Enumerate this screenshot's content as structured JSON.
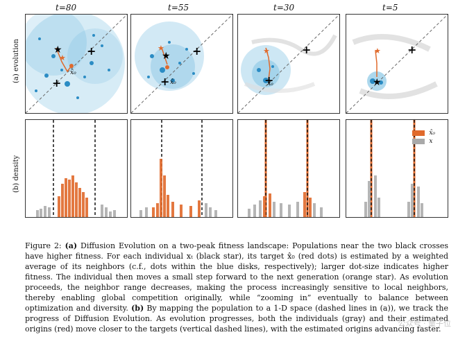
{
  "figure": {
    "col_titles": [
      "t=80",
      "t=55",
      "t=30",
      "t=5"
    ],
    "row_labels": {
      "evolution": "(a) evolution",
      "density": "(b) density"
    },
    "x0_label": "x̂₀",
    "legend": {
      "red": "x̂₀",
      "gray": "x"
    },
    "colors": {
      "blue": "#4aa8d8",
      "orange": "#e06a2c",
      "gray": "#a9a9a9",
      "black": "#111111"
    }
  },
  "caption": {
    "label": "Figure 2:",
    "a": "(a)",
    "a_text": " Diffusion Evolution on a two-peak fitness landscape: Populations near the two black crosses have higher fitness. For each individual xₜ (black star), its target x̂₀ (red dots) is estimated by a weighted average of its neighbors (c.f., dots within the blue disks, respectively); larger dot-size indicates higher fitness. The individual then moves a small step forward to the next generation (orange star). As evolution proceeds, the neighbor range decreases, making the process increasingly sensitive to local neighbors, thereby enabling global competition originally, while “zooming in” eventually to balance between optimization and diversity. ",
    "b": "(b)",
    "b_text": " By mapping the population to a 1-D space (dashed lines in (a)), we track the progress of Diffusion Evolution. As evolution progresses, both the individuals (gray) and their estimated origins (red) move closer to the targets (vertical dashed lines), with the estimated origins advancing faster."
  },
  "watermark": "公众号 · 量子位"
}
